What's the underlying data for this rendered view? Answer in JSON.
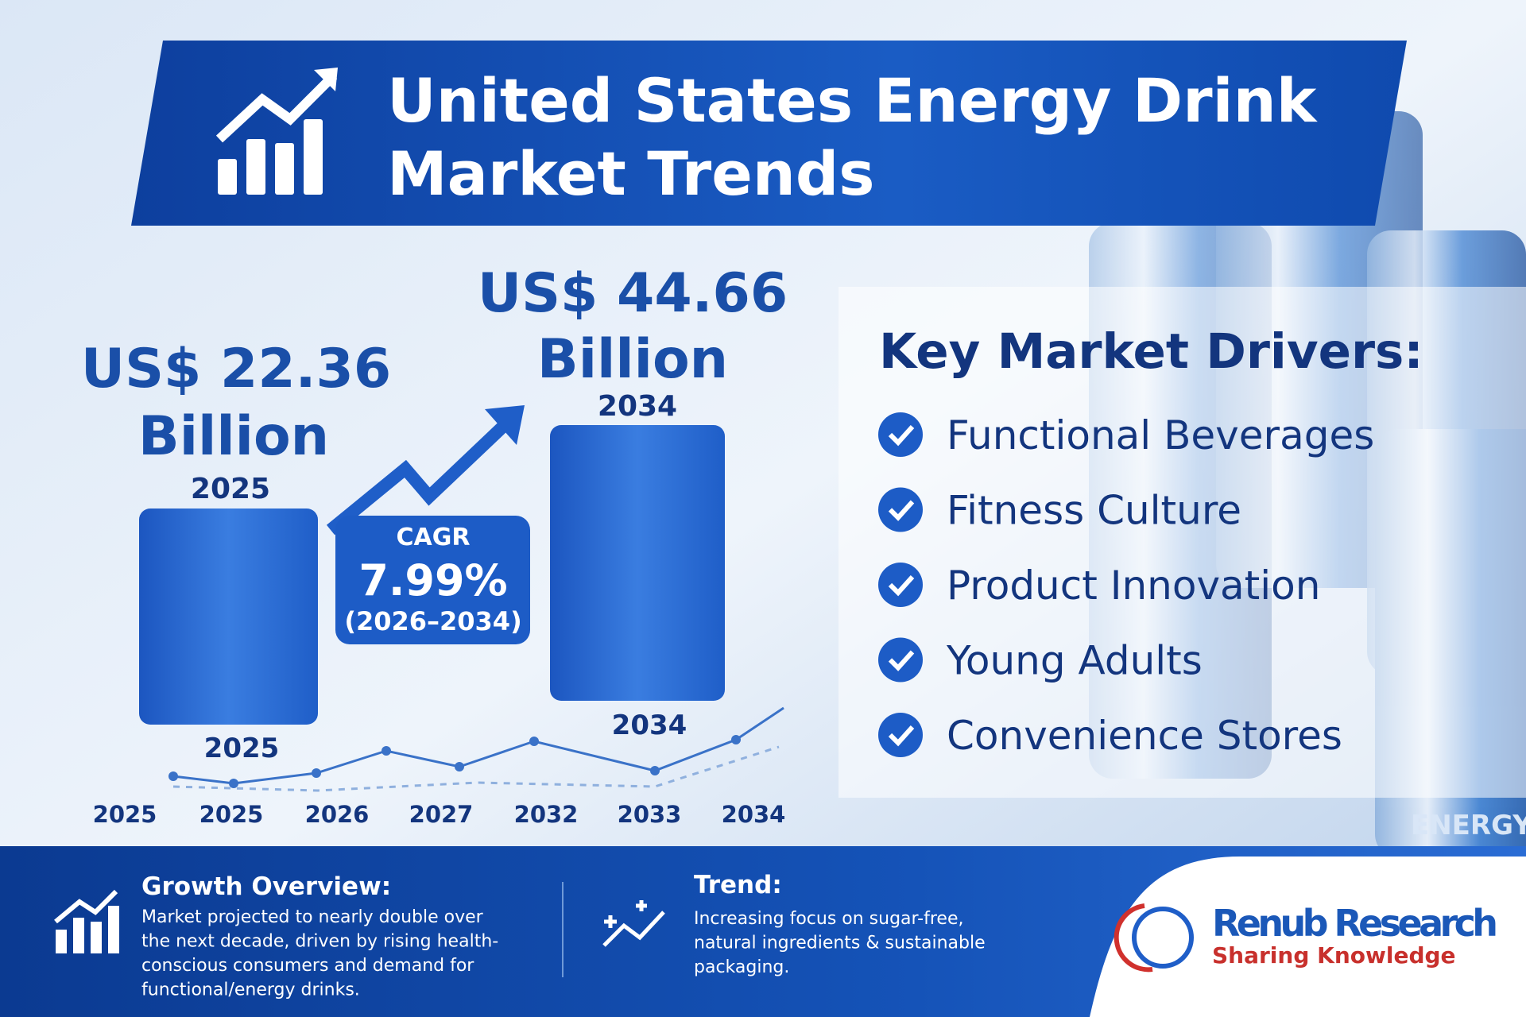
{
  "header": {
    "title_lines": [
      "United States Energy Drink",
      "Market Trends"
    ]
  },
  "market": {
    "start": {
      "value": "US$ 22.36",
      "unit": "Billion",
      "year": "2025",
      "bar_year": "2025"
    },
    "end": {
      "value": "US$ 44.66",
      "unit": "Billion",
      "year": "2034",
      "bar_year": "2034"
    }
  },
  "cagr": {
    "label": "CAGR",
    "value": "7.99%",
    "period": "(2026–2034)"
  },
  "timeline_labels": [
    "2025",
    "2025",
    "2026",
    "2027",
    "2032",
    "2033",
    "2034"
  ],
  "drivers": {
    "title": "Key Market Drivers:",
    "items": [
      "Functional Beverages",
      "Fitness Culture",
      "Product Innovation",
      "Young Adults",
      "Convenience Stores"
    ]
  },
  "can_label": "ENERGY",
  "footer": {
    "growth": {
      "title": "Growth Overview:",
      "lines": [
        "Market projected to nearly double over",
        "the next decade, driven by rising health-",
        "conscious consumers and demand for",
        "functional/energy drinks."
      ]
    },
    "trend": {
      "title": "Trend:",
      "lines": [
        "Increasing focus on sugar-free,",
        "natural ingredients & sustainable",
        "packaging."
      ]
    },
    "brand": {
      "name": "Renub Research",
      "tagline": "Sharing Knowledge"
    }
  }
}
